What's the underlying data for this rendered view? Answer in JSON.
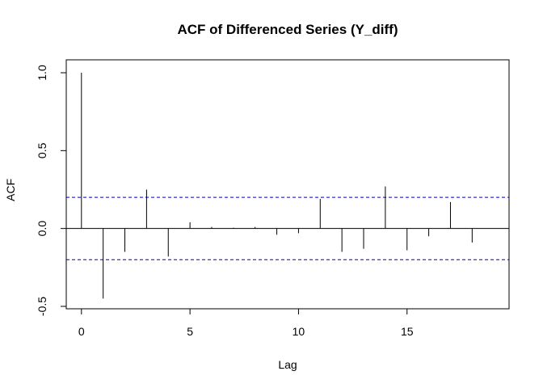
{
  "chart_data": {
    "type": "bar",
    "title": "ACF of Differenced Series (Y_diff)",
    "xlabel": "Lag",
    "ylabel": "ACF",
    "x": [
      0,
      1,
      2,
      3,
      4,
      5,
      6,
      7,
      8,
      9,
      10,
      11,
      12,
      13,
      14,
      15,
      16,
      17,
      18
    ],
    "values": [
      1.0,
      -0.45,
      -0.15,
      0.25,
      -0.18,
      0.04,
      0.01,
      0.005,
      0.01,
      -0.04,
      -0.03,
      0.19,
      -0.15,
      -0.13,
      0.27,
      -0.14,
      -0.05,
      0.17,
      -0.09
    ],
    "confidence_bound": 0.2,
    "xlim": [
      -0.7,
      19.7
    ],
    "ylim": [
      -0.5,
      1.0
    ],
    "x_ticks": [
      0,
      5,
      10,
      15
    ],
    "x_tick_labels": [
      "0",
      "5",
      "10",
      "15"
    ],
    "y_ticks": [
      -0.5,
      0.0,
      0.5,
      1.0
    ],
    "y_tick_labels": [
      "-0.5",
      "0.0",
      "0.5",
      "1.0"
    ],
    "grid": false,
    "colors": {
      "bars": "#000000",
      "confidence": "#0000cc",
      "zero_line": "#000000"
    }
  }
}
